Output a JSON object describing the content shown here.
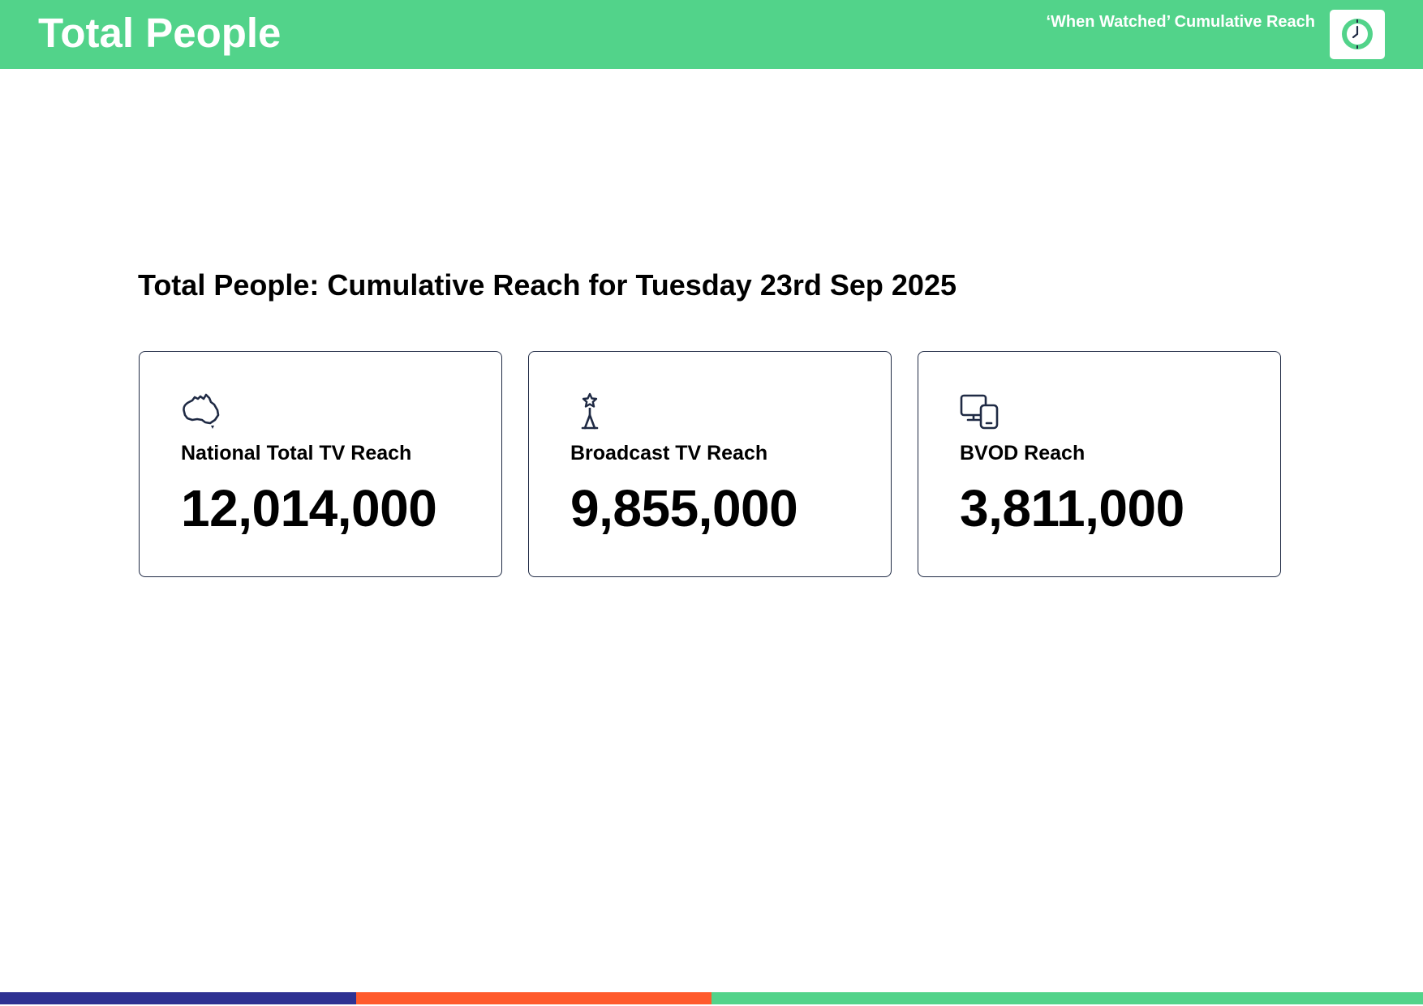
{
  "header": {
    "title": "Total People",
    "subtitle": "‘When Watched’ Cumulative Reach",
    "logo_icon": "clock-icon",
    "background_color": "#52d38a"
  },
  "main": {
    "title": "Total People: Cumulative Reach for Tuesday 23rd Sep 2025",
    "cards": [
      {
        "icon": "australia-map-icon",
        "label": "National Total TV Reach",
        "value": "12,014,000"
      },
      {
        "icon": "broadcast-tower-icon",
        "label": "Broadcast TV Reach",
        "value": "9,855,000"
      },
      {
        "icon": "devices-icon",
        "label": "BVOD Reach",
        "value": "3,811,000"
      }
    ]
  },
  "footer": {
    "bar_colors": [
      "#2e3192",
      "#ff5a2c",
      "#52d38a"
    ]
  }
}
